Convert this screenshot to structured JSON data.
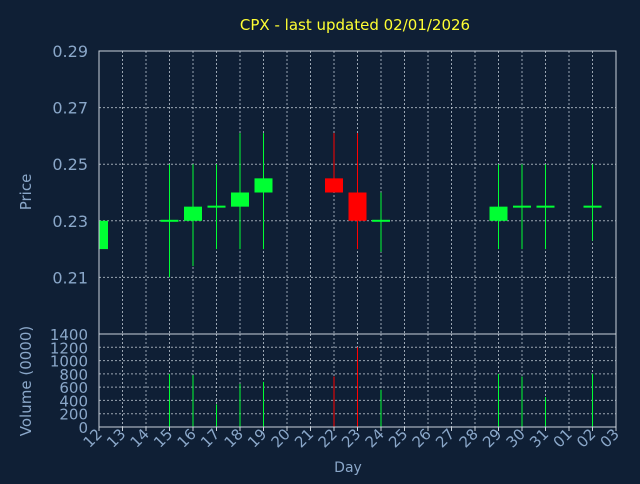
{
  "chart_data": [
    {
      "type": "candlestick",
      "title": "CPX - last updated 02/01/2026",
      "ylabel": "Price",
      "xlabel": "Day",
      "ylim": [
        0.19,
        0.29
      ],
      "yticks": [
        "0.29",
        "0.27",
        "0.25",
        "0.23",
        "0.21"
      ],
      "ytick_values": [
        0.29,
        0.27,
        0.25,
        0.23,
        0.21
      ],
      "categories": [
        "12",
        "13",
        "14",
        "15",
        "16",
        "17",
        "18",
        "19",
        "20",
        "21",
        "22",
        "23",
        "24",
        "25",
        "26",
        "27",
        "28",
        "29",
        "30",
        "31",
        "01",
        "02",
        "03"
      ],
      "candles": [
        {
          "day": "12",
          "open": 0.22,
          "close": 0.23,
          "high": 0.23,
          "low": 0.22
        },
        {
          "day": "15",
          "open": 0.23,
          "close": 0.23,
          "high": 0.25,
          "low": 0.21
        },
        {
          "day": "16",
          "open": 0.23,
          "close": 0.235,
          "high": 0.25,
          "low": 0.214
        },
        {
          "day": "17",
          "open": 0.235,
          "close": 0.235,
          "high": 0.25,
          "low": 0.22
        },
        {
          "day": "18",
          "open": 0.235,
          "close": 0.24,
          "high": 0.261,
          "low": 0.22
        },
        {
          "day": "19",
          "open": 0.24,
          "close": 0.245,
          "high": 0.261,
          "low": 0.22
        },
        {
          "day": "22",
          "open": 0.245,
          "close": 0.24,
          "high": 0.261,
          "low": 0.24
        },
        {
          "day": "23",
          "open": 0.24,
          "close": 0.23,
          "high": 0.261,
          "low": 0.22
        },
        {
          "day": "24",
          "open": 0.23,
          "close": 0.23,
          "high": 0.24,
          "low": 0.219
        },
        {
          "day": "29",
          "open": 0.23,
          "close": 0.235,
          "high": 0.25,
          "low": 0.22
        },
        {
          "day": "30",
          "open": 0.235,
          "close": 0.235,
          "high": 0.25,
          "low": 0.22
        },
        {
          "day": "31",
          "open": 0.235,
          "close": 0.235,
          "high": 0.25,
          "low": 0.22
        },
        {
          "day": "02",
          "open": 0.235,
          "close": 0.235,
          "high": 0.25,
          "low": 0.223
        }
      ],
      "colors": {
        "up": "#00ff33",
        "down": "#ff0000",
        "grid": "#c9d2dc",
        "axis_text": "#8aa7c9",
        "title": "#ffff33",
        "background": "#0f1f35"
      }
    },
    {
      "type": "bar",
      "ylabel": "Volume (0000)",
      "ylim": [
        0,
        1400
      ],
      "yticks": [
        "1400",
        "1200",
        "1000",
        "800",
        "600",
        "400",
        "200",
        "0"
      ],
      "ytick_values": [
        1400,
        1200,
        1000,
        800,
        600,
        400,
        200,
        0
      ],
      "values": [
        {
          "day": "15",
          "value": 800,
          "dir": "up"
        },
        {
          "day": "16",
          "value": 780,
          "dir": "up"
        },
        {
          "day": "17",
          "value": 340,
          "dir": "up"
        },
        {
          "day": "18",
          "value": 650,
          "dir": "up"
        },
        {
          "day": "19",
          "value": 680,
          "dir": "up"
        },
        {
          "day": "22",
          "value": 760,
          "dir": "down"
        },
        {
          "day": "23",
          "value": 1200,
          "dir": "down"
        },
        {
          "day": "24",
          "value": 560,
          "dir": "up"
        },
        {
          "day": "29",
          "value": 800,
          "dir": "up"
        },
        {
          "day": "30",
          "value": 760,
          "dir": "up"
        },
        {
          "day": "31",
          "value": 450,
          "dir": "up"
        },
        {
          "day": "02",
          "value": 800,
          "dir": "up"
        }
      ]
    }
  ]
}
